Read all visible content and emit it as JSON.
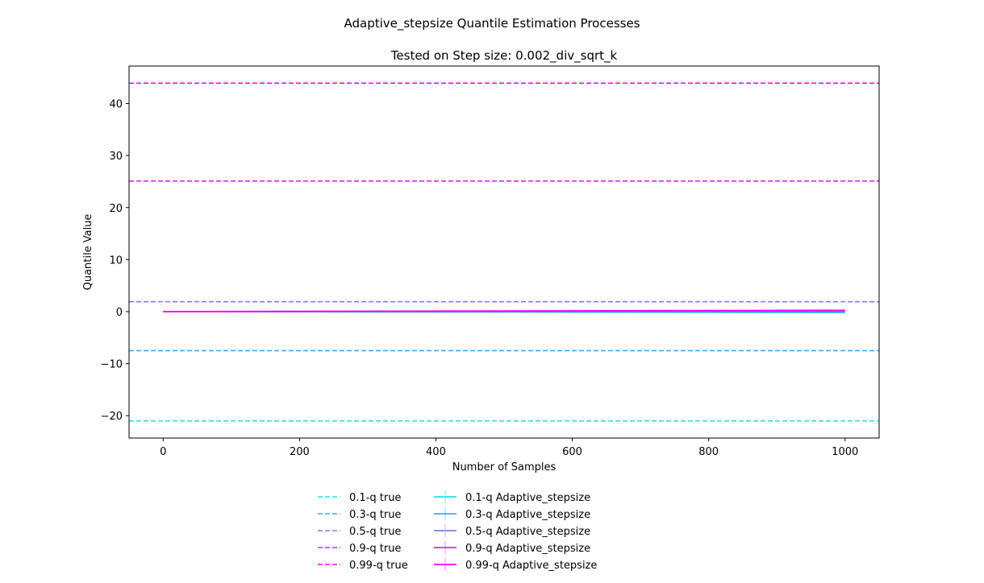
{
  "chart_data": {
    "type": "line",
    "suptitle": "Adaptive_stepsize Quantile Estimation Processes",
    "title": "Tested on Step size: 0.002_div_sqrt_k",
    "xlabel": "Number of Samples",
    "ylabel": "Quantile Value",
    "xlim": [
      -50,
      1050
    ],
    "ylim": [
      -24.3,
      47.2
    ],
    "xticks": [
      0,
      200,
      400,
      600,
      800,
      1000
    ],
    "yticks": [
      -20,
      -10,
      0,
      10,
      20,
      30,
      40
    ],
    "xtick_labels": [
      "0",
      "200",
      "400",
      "600",
      "800",
      "1000"
    ],
    "ytick_labels": [
      "−20",
      "−10",
      "0",
      "10",
      "20",
      "30",
      "40"
    ],
    "grid": false,
    "legend_position": "below-center",
    "true_lines": [
      {
        "name": "0.1-q true",
        "value": -21.0,
        "color": "#22e1e8"
      },
      {
        "name": "0.3-q true",
        "value": -7.5,
        "color": "#3fa8f5"
      },
      {
        "name": "0.5-q true",
        "value": 1.9,
        "color": "#7f80e0"
      },
      {
        "name": "0.9-q true",
        "value": 25.1,
        "color": "#e024e8"
      },
      {
        "name": "0.99-q true",
        "value": 43.9,
        "color": "#ff00ff"
      }
    ],
    "series": [
      {
        "name": "0.1-q Adaptive_stepsize",
        "color": "#22e1e8",
        "x": [
          0,
          1000
        ],
        "y": [
          0.0,
          -0.2
        ]
      },
      {
        "name": "0.3-q Adaptive_stepsize",
        "color": "#3fa8f5",
        "x": [
          0,
          1000
        ],
        "y": [
          0.0,
          -0.05
        ]
      },
      {
        "name": "0.5-q Adaptive_stepsize",
        "color": "#7f80e0",
        "x": [
          0,
          1000
        ],
        "y": [
          0.0,
          0.05
        ]
      },
      {
        "name": "0.9-q Adaptive_stepsize",
        "color": "#e024e8",
        "x": [
          0,
          1000
        ],
        "y": [
          0.0,
          0.15
        ]
      },
      {
        "name": "0.99-q Adaptive_stepsize",
        "color": "#ff00ff",
        "x": [
          0,
          1000
        ],
        "y": [
          0.0,
          0.25
        ]
      }
    ]
  }
}
